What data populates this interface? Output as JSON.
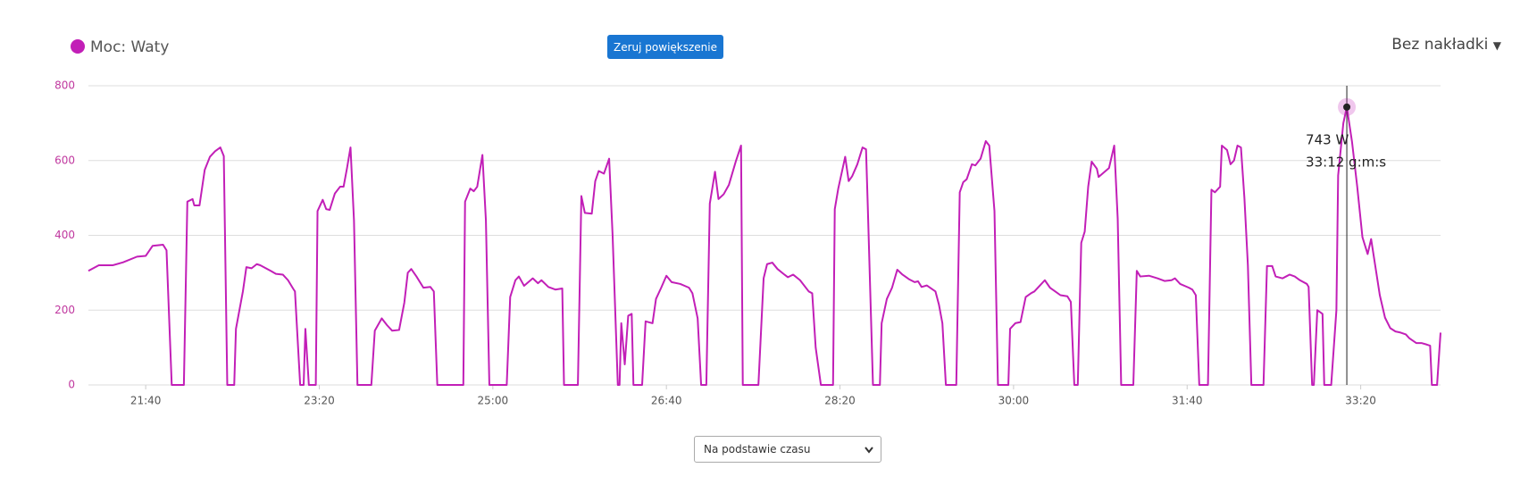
{
  "chart_data": {
    "type": "line",
    "series": [
      {
        "name": "Moc: Waty",
        "color": "#c21fb7",
        "x": [
          1267,
          1273,
          1281,
          1287,
          1295,
          1300,
          1304,
          1310,
          1312,
          1315,
          1322,
          1324,
          1327,
          1328,
          1331,
          1334,
          1337,
          1340,
          1343,
          1345,
          1347,
          1351,
          1352,
          1356,
          1358,
          1361,
          1364,
          1366,
          1372,
          1375,
          1379,
          1382,
          1385,
          1386,
          1389,
          1391,
          1392,
          1394,
          1398,
          1399,
          1402,
          1404,
          1406,
          1409,
          1412,
          1414,
          1416,
          1418,
          1420,
          1422,
          1430,
          1432,
          1436,
          1439,
          1442,
          1446,
          1449,
          1451,
          1453,
          1456,
          1460,
          1464,
          1466,
          1468,
          1483,
          1484,
          1487,
          1489,
          1491,
          1494,
          1496,
          1498,
          1508,
          1510,
          1513,
          1515,
          1518,
          1523,
          1526,
          1528,
          1532,
          1536,
          1540,
          1541,
          1549,
          1551,
          1553,
          1557,
          1559,
          1561,
          1564,
          1567,
          1569,
          1572,
          1573,
          1574,
          1576,
          1578,
          1580,
          1581,
          1586,
          1588,
          1592,
          1594,
          1597,
          1600,
          1603,
          1608,
          1613,
          1615,
          1618,
          1620,
          1623,
          1625,
          1628,
          1630,
          1633,
          1636,
          1640,
          1643,
          1644,
          1653,
          1656,
          1658,
          1661,
          1664,
          1668,
          1670,
          1673,
          1677,
          1682,
          1684,
          1686,
          1689,
          1696,
          1697,
          1699,
          1703,
          1705,
          1707,
          1710,
          1713,
          1715,
          1716,
          1719,
          1723,
          1724,
          1727,
          1730,
          1733,
          1736,
          1740,
          1743,
          1745,
          1747,
          1750,
          1755,
          1757,
          1759,
          1761,
          1767,
          1769,
          1771,
          1773,
          1776,
          1778,
          1781,
          1784,
          1786,
          1789,
          1791,
          1797,
          1798,
          1801,
          1804,
          1807,
          1810,
          1812,
          1815,
          1818,
          1821,
          1824,
          1827,
          1831,
          1833,
          1835,
          1837,
          1839,
          1841,
          1843,
          1845,
          1848,
          1849,
          1852,
          1855,
          1858,
          1860,
          1862,
          1869,
          1871,
          1873,
          1878,
          1883,
          1887,
          1891,
          1893,
          1896,
          1901,
          1903,
          1905,
          1907,
          1912,
          1914,
          1916,
          1919,
          1920,
          1923,
          1925,
          1927,
          1929,
          1931,
          1933,
          1935,
          1937,
          1944,
          1946,
          1949,
          1951,
          1955,
          1957,
          1959,
          1962,
          1965,
          1969,
          1970,
          1972,
          1973,
          1975,
          1978,
          1979,
          1983,
          1986,
          1987,
          1990,
          1992,
          1995,
          1998,
          2001,
          2004,
          2006,
          2009,
          2011,
          2014,
          2017,
          2020,
          2023,
          2026,
          2028,
          2032,
          2035,
          2038,
          2040,
          2041,
          2044,
          2046
        ],
        "values": [
          305,
          320,
          320,
          328,
          343,
          345,
          372,
          375,
          360,
          0,
          0,
          490,
          497,
          480,
          480,
          575,
          610,
          625,
          635,
          612,
          0,
          0,
          150,
          250,
          315,
          312,
          323,
          320,
          305,
          297,
          295,
          280,
          257,
          250,
          0,
          0,
          150,
          0,
          0,
          465,
          495,
          470,
          468,
          512,
          530,
          530,
          580,
          635,
          440,
          0,
          0,
          145,
          178,
          160,
          145,
          147,
          220,
          300,
          310,
          290,
          260,
          262,
          250,
          0,
          0,
          490,
          525,
          518,
          530,
          615,
          440,
          0,
          0,
          235,
          280,
          290,
          265,
          285,
          272,
          280,
          262,
          255,
          258,
          0,
          0,
          505,
          460,
          458,
          545,
          572,
          565,
          605,
          400,
          0,
          0,
          165,
          55,
          185,
          190,
          0,
          0,
          170,
          165,
          230,
          260,
          292,
          275,
          270,
          260,
          245,
          178,
          0,
          0,
          485,
          570,
          497,
          510,
          535,
          598,
          640,
          0,
          0,
          285,
          323,
          327,
          310,
          295,
          288,
          295,
          280,
          250,
          245,
          100,
          0,
          0,
          470,
          525,
          610,
          545,
          558,
          590,
          635,
          630,
          480,
          0,
          0,
          165,
          230,
          260,
          308,
          295,
          282,
          275,
          277,
          262,
          266,
          250,
          215,
          165,
          0,
          0,
          515,
          542,
          550,
          590,
          587,
          605,
          652,
          640,
          465,
          0,
          0,
          150,
          165,
          168,
          235,
          245,
          250,
          265,
          280,
          260,
          250,
          240,
          237,
          222,
          0,
          0,
          380,
          410,
          530,
          597,
          578,
          556,
          568,
          580,
          640,
          445,
          0,
          0,
          305,
          290,
          292,
          285,
          278,
          280,
          285,
          270,
          260,
          255,
          240,
          0,
          0,
          522,
          515,
          530,
          640,
          628,
          590,
          600,
          640,
          635,
          500,
          320,
          0,
          0,
          318,
          318,
          290,
          285,
          290,
          295,
          290,
          280,
          270,
          262,
          0,
          0,
          200,
          190,
          0,
          0,
          200,
          560,
          700,
          743,
          650,
          530,
          395,
          350,
          390,
          300,
          240,
          180,
          152,
          143,
          140,
          135,
          125,
          112,
          112,
          108,
          105,
          0,
          0,
          140
        ]
      }
    ],
    "xlim": [
      1267,
      2046
    ],
    "ylim": [
      0,
      800
    ],
    "xticks": [
      {
        "value": 1300,
        "label": "21:40"
      },
      {
        "value": 1400,
        "label": "23:20"
      },
      {
        "value": 1500,
        "label": "25:00"
      },
      {
        "value": 1600,
        "label": "26:40"
      },
      {
        "value": 1700,
        "label": "28:20"
      },
      {
        "value": 1800,
        "label": "30:00"
      },
      {
        "value": 1900,
        "label": "31:40"
      },
      {
        "value": 2000,
        "label": "33:20"
      }
    ],
    "yticks": [
      0,
      200,
      400,
      600,
      800
    ],
    "grid": true,
    "tooltip": {
      "x": 1992,
      "value": 743,
      "value_label": "743 W",
      "time_label": "33:12 g:m:s"
    }
  },
  "controls": {
    "reset_zoom": "Zeruj powiększenie",
    "overlay": "Bez nakładki",
    "mode": "Na podstawie czasu"
  }
}
